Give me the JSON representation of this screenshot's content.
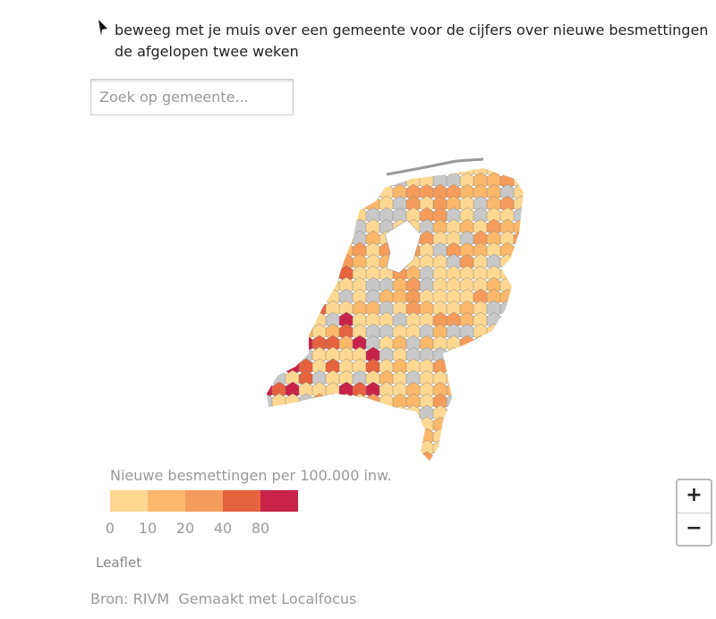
{
  "instruction": "beweeg met je muis over een gemeente voor de cijfers over nieuwe besmettingen de afgelopen twee weken",
  "search": {
    "placeholder": "Zoek op gemeente..."
  },
  "legend": {
    "title": "Nieuwe besmettingen per 100.000 inw.",
    "colors": [
      "#fdd892",
      "#fbb86b",
      "#f59c5c",
      "#e5633f",
      "#c8234a"
    ],
    "ticks": [
      0,
      10,
      20,
      40,
      80
    ]
  },
  "zoom": {
    "in": "+",
    "out": "−"
  },
  "attribution": "Leaflet",
  "footer": {
    "source": "Bron: RIVM",
    "made_with": "Gemaakt met Localfocus"
  }
}
